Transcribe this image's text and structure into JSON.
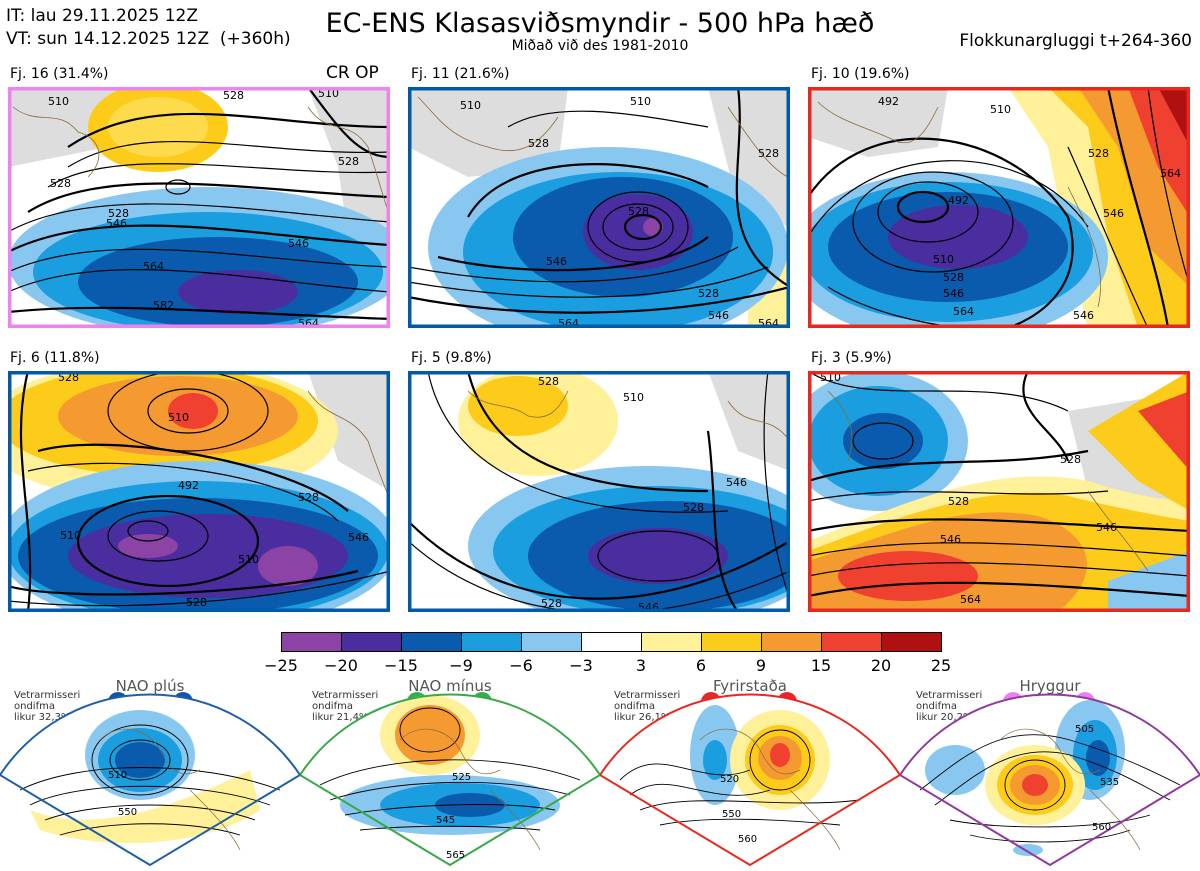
{
  "header": {
    "it_line": "IT: lau 29.11.2025 12Z",
    "vt_line": "VT: sun 14.12.2025 12Z  (+360h)",
    "title": "EC-ENS Klasasviðsmyndir - 500 hPa hæð",
    "subtitle": "Miðað við des 1981-2010",
    "window_label": "Flokkunargluggi t+264-360"
  },
  "panels": [
    {
      "label": "Fj. 16 (31.4%)",
      "frame_color": "#ee82ee",
      "extra_label": "CR OP",
      "contour_labels": [
        "510",
        "528",
        "528",
        "546",
        "546",
        "564",
        "528",
        "582",
        "564",
        "510",
        "528"
      ]
    },
    {
      "label": "Fj. 11 (21.6%)",
      "frame_color": "#005aa8",
      "contour_labels": [
        "510",
        "510",
        "528",
        "528",
        "546",
        "528",
        "564",
        "546",
        "528",
        "564"
      ]
    },
    {
      "label": "Fj. 10 (19.6%)",
      "frame_color": "#e8281e",
      "contour_labels": [
        "492",
        "510",
        "528",
        "564",
        "492",
        "510",
        "528",
        "546",
        "564",
        "546",
        "546"
      ]
    },
    {
      "label": "Fj. 6 (11.8%)",
      "frame_color": "#005aa8",
      "contour_labels": [
        "510",
        "528",
        "492",
        "510",
        "510",
        "528",
        "546",
        "528"
      ]
    },
    {
      "label": "Fj. 5 (9.8%)",
      "frame_color": "#005aa8",
      "contour_labels": [
        "528",
        "510",
        "546",
        "528",
        "528",
        "546"
      ]
    },
    {
      "label": "Fj. 3 (5.9%)",
      "frame_color": "#e8281e",
      "contour_labels": [
        "510",
        "528",
        "528",
        "546",
        "546",
        "564"
      ]
    }
  ],
  "colorbar": {
    "ticks": [
      "−25",
      "−20",
      "−15",
      "−9",
      "−6",
      "−3",
      "3",
      "6",
      "9",
      "15",
      "20",
      "25"
    ],
    "colors": [
      "#8b44a6",
      "#4a2ea0",
      "#0a5aad",
      "#1a9ee0",
      "#88c8f0",
      "#ffffff",
      "#fff09a",
      "#fdcc1a",
      "#f59a30",
      "#ef4030",
      "#b01010"
    ]
  },
  "regimes": [
    {
      "title": "NAO plús",
      "note": "Vetrarmisseri\nondifma\nlikur 32,3%",
      "color": "#1f5ea8",
      "dot_color": "#0b57a8",
      "contour_labels": [
        "510",
        "550"
      ]
    },
    {
      "title": "NAO mínus",
      "note": "Vetrarmisseri\nondifma\nlikur 21,4%",
      "color": "#39a846",
      "dot_color": "#2eb04f",
      "contour_labels": [
        "525",
        "545",
        "565"
      ]
    },
    {
      "title": "Fyrirstaða",
      "note": "Vetrarmisseri\nondifma\nlikur 26,1%",
      "color": "#e8281e",
      "dot_color": "#e8262a",
      "contour_labels": [
        "520",
        "550",
        "560"
      ]
    },
    {
      "title": "Hryggur",
      "note": "Vetrarmisseri\nondifma\nlikur 20,2%",
      "color": "#8e3aa0",
      "dot_color": "#ee80ee",
      "contour_labels": [
        "505",
        "535",
        "560"
      ]
    }
  ]
}
